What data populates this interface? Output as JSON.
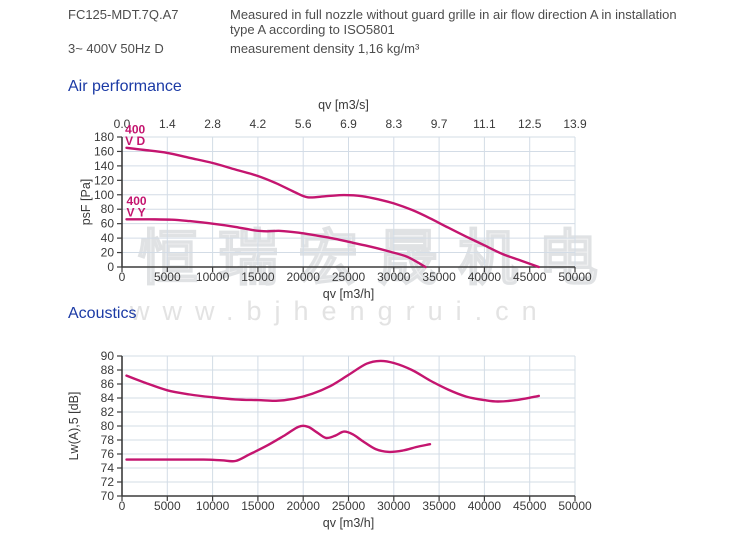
{
  "header": {
    "model": "FC125-MDT.7Q.A7",
    "voltage": "3~ 400V 50Hz D",
    "note_lines": [
      "Measured in full nozzle without guard grille in air flow direction A in installation",
      "type A according to ISO5801"
    ],
    "density": "measurement density 1,16 kg/m³"
  },
  "watermark": {
    "text_cn": "恒瑞宏晟机电",
    "text_url": "www.bjhengrui.cn"
  },
  "colors": {
    "curve": "#c4156f",
    "title_blue": "#1b3aa5",
    "grid": "#d3dce6",
    "axis": "#3c3c3c",
    "header_text": "#4d4d4d"
  },
  "chart_data": [
    {
      "type": "line",
      "title": "Air performance",
      "top_axis": {
        "label": "qv [m3/s]",
        "ticks": [
          "0.0",
          "1.4",
          "2.8",
          "4.2",
          "5.6",
          "6.9",
          "8.3",
          "9.7",
          "11.1",
          "12.5",
          "13.9"
        ]
      },
      "x": {
        "label": "qv [m3/h]",
        "min": 0,
        "max": 50000,
        "step": 5000
      },
      "y": {
        "label": "psF [Pa]",
        "min": 0,
        "max": 180,
        "step": 20
      },
      "series": [
        {
          "name": "400 V D",
          "points": [
            [
              500,
              165
            ],
            [
              2500,
              162
            ],
            [
              5000,
              158
            ],
            [
              7500,
              151
            ],
            [
              10000,
              144
            ],
            [
              12500,
              135
            ],
            [
              15000,
              126
            ],
            [
              17000,
              116
            ],
            [
              19000,
              104
            ],
            [
              20500,
              96.5
            ],
            [
              22500,
              98
            ],
            [
              24500,
              99.5
            ],
            [
              26500,
              98
            ],
            [
              28500,
              93
            ],
            [
              30000,
              88
            ],
            [
              32000,
              79
            ],
            [
              34000,
              67.5
            ],
            [
              36000,
              54.5
            ],
            [
              38000,
              42
            ],
            [
              40000,
              30
            ],
            [
              42000,
              18
            ],
            [
              44000,
              9
            ],
            [
              46000,
              0
            ]
          ]
        },
        {
          "name": "400 V Y",
          "points": [
            [
              500,
              66
            ],
            [
              3000,
              66
            ],
            [
              5500,
              65.5
            ],
            [
              7500,
              63.5
            ],
            [
              10000,
              60
            ],
            [
              12500,
              55.5
            ],
            [
              14500,
              51
            ],
            [
              16000,
              49.5
            ],
            [
              17500,
              50
            ],
            [
              19500,
              47.5
            ],
            [
              21500,
              43.5
            ],
            [
              23500,
              39
            ],
            [
              25500,
              33.5
            ],
            [
              27500,
              28
            ],
            [
              29500,
              21.5
            ],
            [
              31500,
              14
            ],
            [
              33500,
              0
            ]
          ]
        }
      ],
      "annotations": [
        {
          "x": 350,
          "y": 185,
          "lines": [
            "400",
            "V D"
          ]
        },
        {
          "x": 500,
          "y": 86,
          "lines": [
            "400",
            "V Y"
          ]
        }
      ]
    },
    {
      "type": "line",
      "title": "Acoustics",
      "x": {
        "label": "qv [m3/h]",
        "min": 0,
        "max": 50000,
        "step": 5000
      },
      "y": {
        "label": "Lw(A),5 [dB]",
        "min": 70,
        "max": 90,
        "step": 2
      },
      "series": [
        {
          "name": "400 V D",
          "points": [
            [
              500,
              87.2
            ],
            [
              2500,
              86.2
            ],
            [
              5000,
              85.1
            ],
            [
              7500,
              84.5
            ],
            [
              10000,
              84.1
            ],
            [
              12500,
              83.8
            ],
            [
              15000,
              83.7
            ],
            [
              17000,
              83.6
            ],
            [
              19000,
              83.9
            ],
            [
              21000,
              84.6
            ],
            [
              23000,
              85.7
            ],
            [
              25000,
              87.3
            ],
            [
              27000,
              88.9
            ],
            [
              28500,
              89.3
            ],
            [
              30000,
              89.0
            ],
            [
              32000,
              88.0
            ],
            [
              34000,
              86.5
            ],
            [
              36000,
              85.2
            ],
            [
              38000,
              84.2
            ],
            [
              40000,
              83.7
            ],
            [
              41500,
              83.5
            ],
            [
              43500,
              83.7
            ],
            [
              46000,
              84.3
            ]
          ]
        },
        {
          "name": "400 V Y",
          "points": [
            [
              500,
              75.2
            ],
            [
              3000,
              75.2
            ],
            [
              6000,
              75.2
            ],
            [
              9000,
              75.2
            ],
            [
              11000,
              75.1
            ],
            [
              12500,
              75.0
            ],
            [
              14000,
              75.9
            ],
            [
              16000,
              77.2
            ],
            [
              18000,
              78.7
            ],
            [
              19500,
              79.9
            ],
            [
              20500,
              79.9
            ],
            [
              21500,
              79.1
            ],
            [
              22500,
              78.3
            ],
            [
              23500,
              78.6
            ],
            [
              24500,
              79.2
            ],
            [
              25500,
              78.8
            ],
            [
              26500,
              77.9
            ],
            [
              28000,
              76.7
            ],
            [
              29500,
              76.3
            ],
            [
              31000,
              76.5
            ],
            [
              32500,
              77.0
            ],
            [
              34000,
              77.4
            ]
          ]
        }
      ],
      "annotations": []
    }
  ]
}
